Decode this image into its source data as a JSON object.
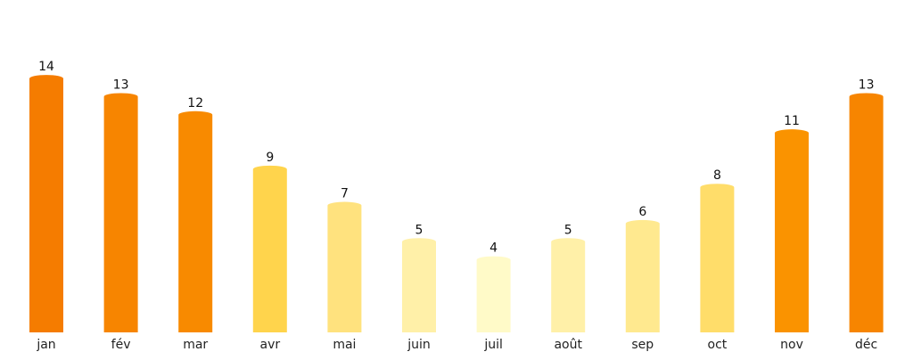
{
  "chart_data": {
    "type": "bar",
    "categories": [
      "jan",
      "fév",
      "mar",
      "avr",
      "mai",
      "juin",
      "juil",
      "août",
      "sep",
      "oct",
      "nov",
      "déc"
    ],
    "values": [
      14,
      13,
      12,
      9,
      7,
      5,
      4,
      5,
      6,
      8,
      11,
      13
    ],
    "colors": [
      "#f57c00",
      "#f78500",
      "#f88a00",
      "#ffd44c",
      "#ffe27e",
      "#fff0a8",
      "#fffac8",
      "#fff0a8",
      "#ffe98f",
      "#ffdd6a",
      "#fa9300",
      "#f78500"
    ],
    "title": "",
    "xlabel": "",
    "ylabel": "",
    "ylim": [
      0,
      14
    ],
    "grid": false,
    "legend": "none",
    "show_value_labels": true
  }
}
